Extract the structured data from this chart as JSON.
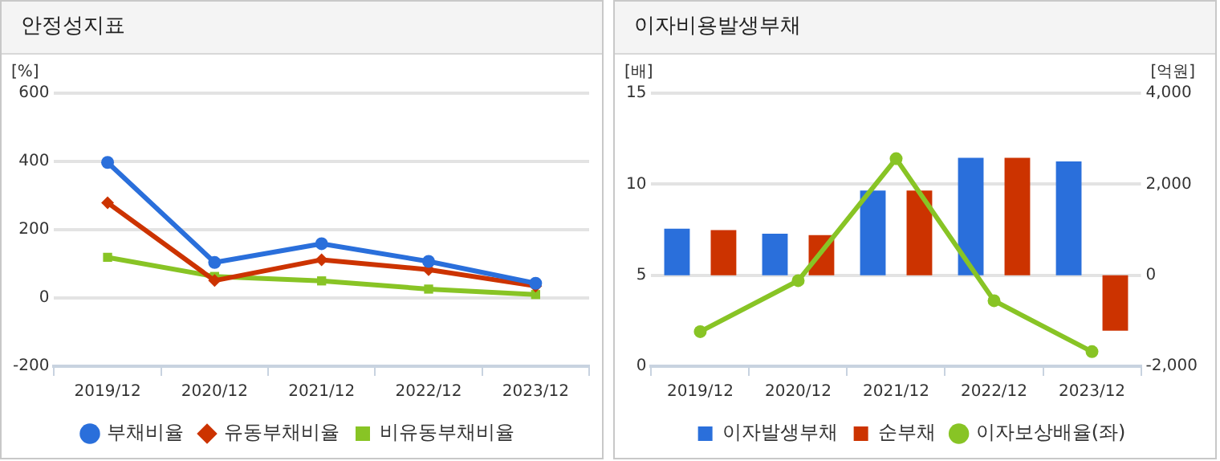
{
  "chart_data": [
    {
      "type": "line",
      "title": "안정성지표",
      "ylabel": "[%]",
      "categories": [
        "2019/12",
        "2020/12",
        "2021/12",
        "2022/12",
        "2023/12"
      ],
      "series": [
        {
          "name": "부채비율",
          "color": "#2a6fdb",
          "marker": "circle",
          "values": [
            397,
            104,
            159,
            107,
            43
          ]
        },
        {
          "name": "유동부채비율",
          "color": "#cc3300",
          "marker": "diamond",
          "values": [
            279,
            51,
            112,
            83,
            35
          ]
        },
        {
          "name": "비유동부채비율",
          "color": "#88c425",
          "marker": "square",
          "values": [
            119,
            63,
            50,
            26,
            10
          ]
        }
      ],
      "ylim": [
        -200,
        600
      ],
      "yticks": [
        -200,
        0,
        200,
        400,
        600
      ],
      "grid": "y",
      "legend": "bottom"
    },
    {
      "type": "bar",
      "title": "이자비용발생부채",
      "ylabel": "[배]",
      "y2label": "[억원]",
      "categories": [
        "2019/12",
        "2020/12",
        "2021/12",
        "2022/12",
        "2023/12"
      ],
      "series": [
        {
          "name": "이자발생부채",
          "color": "#2a6fdb",
          "axis": "y2",
          "values": [
            1020,
            910,
            1860,
            2580,
            2500
          ]
        },
        {
          "name": "순부채",
          "color": "#cc3300",
          "axis": "y2",
          "values": [
            990,
            880,
            1860,
            2580,
            -1220
          ]
        },
        {
          "name": "이자보상배율(좌)",
          "type": "line",
          "color": "#88c425",
          "marker": "circle",
          "values": [
            1.9,
            4.7,
            11.4,
            3.6,
            0.8
          ]
        }
      ],
      "ylim": [
        0,
        15
      ],
      "yticks": [
        0,
        5,
        10,
        15
      ],
      "y2lim": [
        -2000,
        4000
      ],
      "y2ticks": [
        {
          "value": -2000,
          "label": "-2,000"
        },
        0,
        {
          "value": 2000,
          "label": "2,000"
        },
        {
          "value": 4000,
          "label": "4,000"
        }
      ],
      "grid": "y",
      "legend": "bottom"
    }
  ]
}
